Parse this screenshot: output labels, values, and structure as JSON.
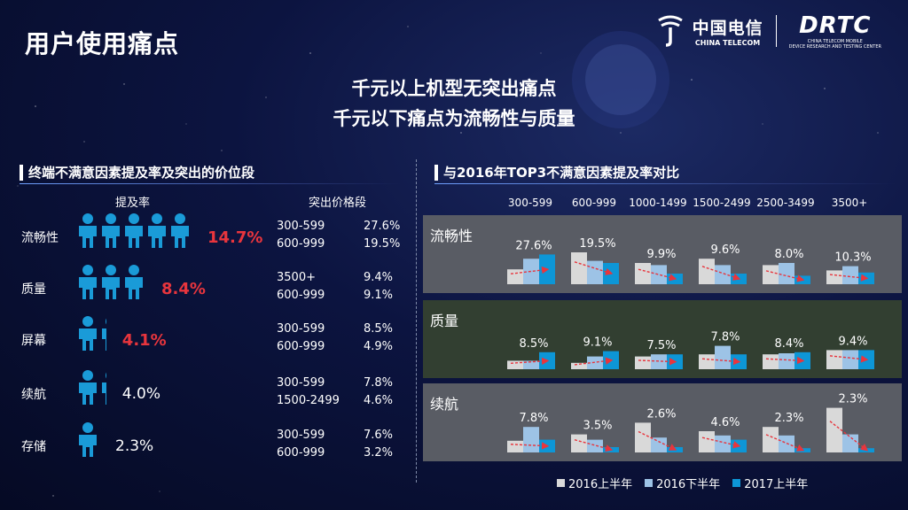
{
  "slide_title": "用户使用痛点",
  "logo": {
    "ct_cn": "中国电信",
    "ct_en": "CHINA TELECOM",
    "drtc": "DRTC",
    "drtc_sub1": "CHINA TELECOM MOBILE",
    "drtc_sub2": "DEVICE RESEARCH AND TESTING CENTER"
  },
  "headline": [
    "千元以上机型无突出痛点",
    "千元以下痛点为流畅性与质量"
  ],
  "left": {
    "section_title": "终端不满意因素提及率及突出的价位段",
    "col_rate": "提及率",
    "col_segment": "突出价格段",
    "rows": [
      {
        "label": "流畅性",
        "rate": "14.7%",
        "icons": 5,
        "highlight": true,
        "segments": [
          [
            "300-599",
            "27.6%"
          ],
          [
            "600-999",
            "19.5%"
          ]
        ]
      },
      {
        "label": "质量",
        "rate": "8.4%",
        "icons": 3,
        "highlight": true,
        "segments": [
          [
            "3500+",
            "9.4%"
          ],
          [
            "600-999",
            "9.1%"
          ]
        ]
      },
      {
        "label": "屏幕",
        "rate": "4.1%",
        "icons": 1.3,
        "highlight": true,
        "segments": [
          [
            "300-599",
            "8.5%"
          ],
          [
            "600-999",
            "4.9%"
          ]
        ]
      },
      {
        "label": "续航",
        "rate": "4.0%",
        "icons": 1.3,
        "highlight": false,
        "segments": [
          [
            "300-599",
            "7.8%"
          ],
          [
            "1500-2499",
            "4.6%"
          ]
        ]
      },
      {
        "label": "存储",
        "rate": "2.3%",
        "icons": 1,
        "highlight": false,
        "segments": [
          [
            "300-599",
            "7.6%"
          ],
          [
            "600-999",
            "3.2%"
          ]
        ]
      }
    ]
  },
  "chart_data": {
    "type": "bar",
    "title": "与2016年TOP3不满意因素提及率对比",
    "categories": [
      "300-599",
      "600-999",
      "1000-1499",
      "1500-2499",
      "2500-3499",
      "3500+"
    ],
    "panels": [
      {
        "name": "流畅性",
        "bg": "#595c64",
        "series": [
          [
            7.0,
            15.0,
            10.0,
            12.0,
            9.0,
            6.5
          ],
          [
            12.0,
            11.0,
            9.0,
            9.0,
            10.0,
            8.5
          ],
          [
            14.0,
            10.0,
            5.0,
            5.0,
            4.0,
            5.5
          ]
        ],
        "labels": [
          "27.6%",
          "19.5%",
          "9.9%",
          "9.6%",
          "8.0%",
          "10.3%"
        ]
      },
      {
        "name": "质量",
        "bg": "#323f31",
        "series": [
          [
            4.0,
            3.0,
            6.0,
            7.0,
            7.0,
            9.0
          ],
          [
            4.0,
            6.0,
            7.0,
            11.0,
            7.5,
            9.0
          ],
          [
            8.0,
            8.5,
            7.0,
            7.0,
            8.0,
            9.0
          ]
        ],
        "labels": [
          "8.5%",
          "9.1%",
          "7.5%",
          "7.8%",
          "8.4%",
          "9.4%"
        ]
      },
      {
        "name": "续航",
        "bg": "#595c64",
        "series": [
          [
            5.5,
            8.5,
            14.0,
            10.0,
            12.0,
            21.0
          ],
          [
            12.0,
            6.0,
            7.0,
            8.0,
            8.0,
            8.5
          ],
          [
            6.0,
            2.5,
            2.5,
            6.0,
            2.0,
            2.0
          ]
        ],
        "labels": [
          "7.8%",
          "3.5%",
          "2.6%",
          "4.6%",
          "2.3%",
          "2.3%"
        ]
      }
    ],
    "legend": [
      "2016上半年",
      "2016下半年",
      "2017上半年"
    ],
    "colors": [
      "#d9d9d9",
      "#9dc3e6",
      "#0d96d6"
    ],
    "arrow_color": "#e8353d"
  }
}
